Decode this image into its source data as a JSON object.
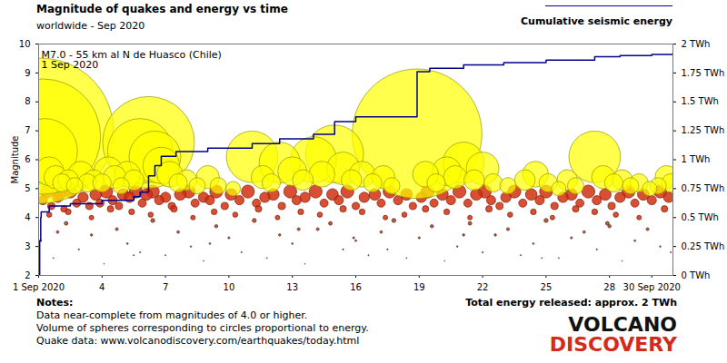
{
  "chart_data": {
    "type": "scatter",
    "title": "Magnitude of quakes and energy vs time",
    "subtitle": "worldwide - Sep 2020",
    "y_label": "Magnitude",
    "annotation": [
      "M7.0 - 55 km al N de Huasco (Chile)",
      "1 Sep 2020"
    ],
    "notes": {
      "heading": "Notes:",
      "lines": [
        "Data near-complete from magnitudes of 4.0 or higher.",
        "Volume of spheres corresponding to circles proportional to energy.",
        "Quake data: www.volcanodiscovery.com/earthquakes/today.html"
      ]
    },
    "footer_text": "Total energy released: approx. 2 TWh",
    "logo": [
      "VOLCANO",
      "DISCOVERY"
    ],
    "xlim": [
      1,
      31
    ],
    "xticks": [
      {
        "value": 1,
        "label": "1 Sep 2020"
      },
      4,
      7,
      10,
      13,
      16,
      19,
      22,
      25,
      28,
      {
        "value": 30,
        "label": "30 Sep 2020"
      }
    ],
    "ylim": [
      2,
      10
    ],
    "yticks": [
      2,
      3,
      4,
      5,
      6,
      7,
      8,
      9,
      10
    ],
    "y2lim": [
      0,
      2
    ],
    "y2ticks": [
      {
        "value": 0,
        "label": "0 TWh"
      },
      {
        "value": 0.25,
        "label": "0.25 TWh"
      },
      {
        "value": 0.5,
        "label": "0.5 TWh"
      },
      {
        "value": 0.75,
        "label": "0.75 TWh"
      },
      {
        "value": 1,
        "label": "1 TWh"
      },
      {
        "value": 1.25,
        "label": "1.25 TWh"
      },
      {
        "value": 1.5,
        "label": "1.5 TWh"
      },
      {
        "value": 1.75,
        "label": "1.75 TWh"
      },
      {
        "value": 2,
        "label": "2 TWh"
      }
    ],
    "grid": false,
    "legend": "top-right",
    "series": [
      {
        "type": "scatter",
        "marker": "circle",
        "color": "#a0442c",
        "x": [
          1.1,
          1.7,
          2.3,
          2.9,
          3.5,
          4.1,
          4.7,
          5.2,
          5.8,
          6.4,
          7.0,
          7.6,
          8.2,
          8.8,
          9.4,
          10.0,
          10.6,
          11.2,
          11.8,
          12.4,
          13.0,
          13.6,
          14.2,
          14.8,
          15.4,
          16.0,
          16.6,
          17.2,
          17.8,
          18.4,
          19.0,
          19.6,
          20.2,
          20.8,
          21.4,
          22.0,
          22.6,
          23.2,
          23.8,
          24.4,
          25.0,
          25.6,
          26.2,
          26.8,
          27.4,
          28.0,
          28.6,
          29.2,
          29.8,
          30.4,
          30.9,
          1.9,
          5.5,
          9.1,
          13.3,
          17.5,
          21.1,
          24.8,
          27.9,
          15.9
        ],
        "values": [
          3.2,
          2.6,
          3.8,
          2.9,
          3.4,
          2.4,
          3.6,
          3.1,
          2.8,
          3.9,
          2.7,
          3.5,
          3.0,
          2.5,
          3.7,
          3.3,
          2.8,
          3.9,
          2.6,
          3.4,
          3.1,
          2.4,
          3.6,
          3.8,
          2.9,
          3.2,
          2.7,
          3.5,
          3.9,
          2.6,
          3.3,
          3.7,
          2.5,
          3.0,
          3.8,
          2.8,
          3.4,
          3.6,
          2.7,
          3.1,
          3.9,
          2.6,
          3.3,
          3.5,
          2.9,
          3.7,
          2.5,
          3.2,
          3.6,
          3.0,
          2.8,
          3.5,
          2.7,
          3.1,
          3.6,
          2.9,
          3.4,
          2.6,
          3.8,
          3.3
        ]
      },
      {
        "type": "scatter",
        "marker": "circle",
        "color": "#d2300f",
        "x": [
          1.2,
          1.4,
          1.6,
          1.9,
          2.0,
          2.2,
          2.5,
          2.8,
          3.1,
          3.4,
          3.7,
          3.9,
          4.2,
          4.5,
          4.8,
          5.0,
          5.3,
          5.6,
          5.9,
          6.1,
          6.4,
          6.7,
          7.0,
          7.3,
          7.7,
          8.1,
          8.4,
          8.8,
          9.1,
          9.4,
          9.8,
          10.1,
          10.5,
          10.9,
          11.3,
          11.7,
          12.1,
          12.5,
          12.9,
          13.2,
          13.6,
          14.1,
          14.5,
          14.9,
          15.2,
          15.6,
          16.0,
          16.4,
          16.9,
          17.2,
          17.6,
          18.0,
          18.4,
          18.7,
          19.1,
          19.4,
          19.7,
          20.1,
          20.5,
          20.9,
          21.3,
          21.7,
          22.1,
          22.4,
          22.8,
          23.1,
          23.5,
          23.9,
          24.3,
          24.7,
          25.0,
          25.4,
          25.8,
          26.2,
          26.6,
          27.0,
          27.4,
          27.8,
          28.1,
          28.5,
          28.9,
          29.2,
          29.6,
          30.0,
          30.4,
          30.8,
          1.5,
          2.4,
          3.5,
          4.4,
          5.4,
          6.3,
          7.4,
          8.3,
          9.3,
          10.3,
          11.4,
          12.3,
          13.4,
          14.3,
          15.4,
          16.3,
          17.4,
          18.3,
          19.3,
          20.3,
          21.4,
          22.3,
          23.3,
          24.4,
          25.3,
          26.4,
          27.3,
          28.3,
          29.4,
          30.6
        ],
        "values": [
          4.6,
          4.9,
          4.4,
          4.7,
          4.8,
          4.3,
          4.9,
          4.5,
          4.7,
          4.4,
          4.8,
          4.5,
          4.9,
          4.6,
          4.4,
          4.8,
          4.7,
          4.9,
          4.5,
          4.8,
          4.9,
          4.6,
          4.7,
          4.4,
          4.8,
          4.9,
          4.5,
          4.7,
          4.6,
          4.9,
          4.4,
          4.8,
          4.6,
          4.9,
          4.5,
          4.7,
          4.8,
          4.4,
          4.9,
          4.6,
          4.7,
          4.9,
          4.5,
          4.8,
          4.6,
          4.9,
          4.4,
          4.7,
          4.8,
          4.5,
          4.9,
          4.6,
          4.8,
          4.4,
          4.7,
          4.9,
          4.5,
          4.8,
          4.6,
          4.9,
          4.5,
          4.8,
          4.9,
          4.6,
          4.4,
          4.7,
          4.9,
          4.5,
          4.8,
          4.6,
          4.9,
          4.4,
          4.7,
          4.8,
          4.5,
          4.9,
          4.6,
          4.8,
          4.4,
          4.7,
          4.9,
          4.5,
          4.8,
          4.6,
          4.9,
          4.7,
          4.1,
          4.2,
          4.0,
          4.3,
          4.2,
          4.1,
          4.3,
          4.0,
          4.2,
          4.1,
          4.3,
          4.0,
          4.2,
          4.1,
          4.3,
          4.2,
          4.0,
          4.1,
          4.3,
          4.2,
          4.0,
          4.3,
          4.1,
          4.2,
          4.0,
          4.3,
          4.2,
          4.1,
          4.0,
          4.3
        ]
      },
      {
        "type": "scatter",
        "marker": "circle",
        "color": "#ffff00",
        "x": [
          1.1,
          1.2,
          1.3,
          1.5,
          1.8,
          2.1,
          2.4,
          2.7,
          3.0,
          3.3,
          3.6,
          4.0,
          4.3,
          4.6,
          4.9,
          5.2,
          5.5,
          5.8,
          6.2,
          6.5,
          6.8,
          7.2,
          7.6,
          8.0,
          8.5,
          9.0,
          9.5,
          10.2,
          11.1,
          11.6,
          12.0,
          12.4,
          13.0,
          13.5,
          14.0,
          14.4,
          15.0,
          15.4,
          15.8,
          16.3,
          16.8,
          17.3,
          17.7,
          18.9,
          19.3,
          19.8,
          20.3,
          20.7,
          21.1,
          21.6,
          22.0,
          22.5,
          23.2,
          24.0,
          24.5,
          25.1,
          25.6,
          26.0,
          26.4,
          27.3,
          27.7,
          28.2,
          28.6,
          29.0,
          29.4,
          29.9,
          30.3,
          30.7,
          30.9
        ],
        "values": [
          7.0,
          6.8,
          6.3,
          5.6,
          5.4,
          5.2,
          5.3,
          5.1,
          5.5,
          5.2,
          5.3,
          5.2,
          5.6,
          5.4,
          5.1,
          5.5,
          5.3,
          6.3,
          6.6,
          6.1,
          5.8,
          5.5,
          5.2,
          5.3,
          5.1,
          5.4,
          5.1,
          5.0,
          6.1,
          5.4,
          5.2,
          5.9,
          5.6,
          5.3,
          6.0,
          5.5,
          6.2,
          5.7,
          5.3,
          5.5,
          5.2,
          5.4,
          5.1,
          6.9,
          5.5,
          5.2,
          5.6,
          5.4,
          5.9,
          5.3,
          5.7,
          5.2,
          5.1,
          5.3,
          5.5,
          5.2,
          5.0,
          5.3,
          5.1,
          6.1,
          5.4,
          5.2,
          5.3,
          5.1,
          5.2,
          5.0,
          5.1,
          5.4,
          5.2
        ]
      },
      {
        "type": "line",
        "name": "Cumulative seismic energy",
        "axis": "y2",
        "color": "#00008b",
        "line_style": "solid",
        "x": [
          1.0,
          1.05,
          1.1,
          1.12,
          1.5,
          2.5,
          4.0,
          5.5,
          5.8,
          6.2,
          6.5,
          6.8,
          7.5,
          9.0,
          11.1,
          12.4,
          14.0,
          15.0,
          16.0,
          18.9,
          19.5,
          21.1,
          23.0,
          25.0,
          27.3,
          28.5,
          30.0,
          31.0
        ],
        "values": [
          0.0,
          0.3,
          0.5,
          0.55,
          0.6,
          0.62,
          0.65,
          0.68,
          0.72,
          0.86,
          0.95,
          1.03,
          1.07,
          1.1,
          1.14,
          1.18,
          1.22,
          1.33,
          1.37,
          1.76,
          1.79,
          1.82,
          1.84,
          1.86,
          1.89,
          1.9,
          1.91,
          1.92
        ]
      }
    ]
  }
}
